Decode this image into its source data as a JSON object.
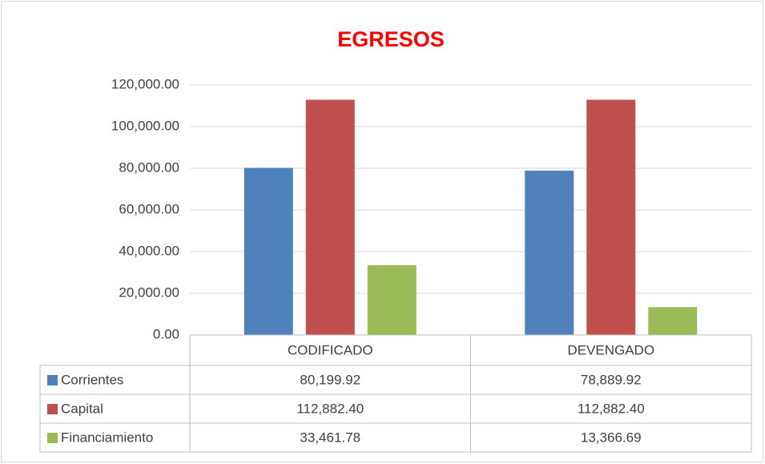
{
  "chart_data": {
    "type": "bar",
    "title": "EGRESOS",
    "categories": [
      "CODIFICADO",
      "DEVENGADO"
    ],
    "series": [
      {
        "name": "Corrientes",
        "color": "#4f81bd",
        "values": [
          80199.92,
          78889.92
        ],
        "value_labels": [
          "80,199.92",
          "78,889.92"
        ]
      },
      {
        "name": "Capital",
        "color": "#c0504d",
        "values": [
          112882.4,
          112882.4
        ],
        "value_labels": [
          "112,882.40",
          "112,882.40"
        ]
      },
      {
        "name": "Financiamiento",
        "color": "#9bbb59",
        "values": [
          33461.78,
          13366.69
        ],
        "value_labels": [
          "33,461.78",
          "13,366.69"
        ]
      }
    ],
    "ylim": [
      0,
      120000
    ],
    "yticks": [
      {
        "value": 0,
        "label": "0.00"
      },
      {
        "value": 20000,
        "label": "20,000.00"
      },
      {
        "value": 40000,
        "label": "40,000.00"
      },
      {
        "value": 60000,
        "label": "60,000.00"
      },
      {
        "value": 80000,
        "label": "80,000.00"
      },
      {
        "value": 100000,
        "label": "100,000.00"
      },
      {
        "value": 120000,
        "label": "120,000.00"
      }
    ],
    "grid": true,
    "data_table": true
  }
}
